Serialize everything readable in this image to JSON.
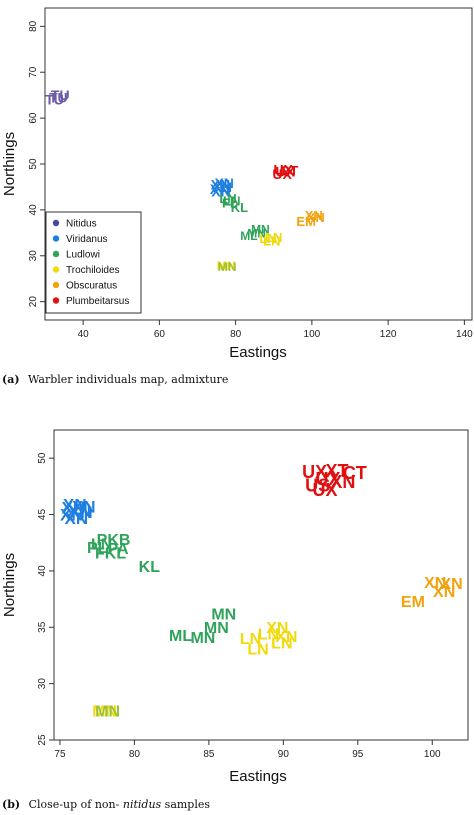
{
  "chart_data": [
    {
      "type": "scatter",
      "title": "",
      "xlabel": "Eastings",
      "ylabel": "Northings",
      "xlim": [
        30,
        142
      ],
      "ylim": [
        16,
        84
      ],
      "x_ticks": [
        40,
        60,
        80,
        100,
        120,
        140
      ],
      "y_ticks": [
        20,
        30,
        40,
        50,
        60,
        70,
        80
      ],
      "grid": false,
      "legend_placement": "bottom-left",
      "caption_prefix": "(a)",
      "caption": "Warbler individuals map, admixture",
      "legend": [
        {
          "name": "Nitidus",
          "color": "#4a4a9c"
        },
        {
          "name": "Viridanus",
          "color": "#1f7fe0"
        },
        {
          "name": "Ludlowi",
          "color": "#2fa35a"
        },
        {
          "name": "Trochiloides",
          "color": "#f2d90a"
        },
        {
          "name": "Obscuratus",
          "color": "#f2a20a"
        },
        {
          "name": "Plumbeitarsus",
          "color": "#e01010"
        }
      ],
      "points": [
        {
          "label": "TU",
          "x": 33.5,
          "y": 64.5,
          "color": "#6a5aa8",
          "size": 14
        },
        {
          "label": "TU",
          "x": 32.5,
          "y": 64.0,
          "color": "#6a5aa8",
          "size": 14
        },
        {
          "label": "TU",
          "x": 34.0,
          "y": 65.0,
          "color": "#6a5aa8",
          "size": 14
        },
        {
          "label": "XN",
          "x": 76.0,
          "y": 45.5,
          "color": "#1f7fe0",
          "size": 14
        },
        {
          "label": "XN",
          "x": 76.5,
          "y": 45.0,
          "color": "#1f7fe0",
          "size": 14
        },
        {
          "label": "XN",
          "x": 75.8,
          "y": 44.5,
          "color": "#1f7fe0",
          "size": 14
        },
        {
          "label": "XN",
          "x": 77.0,
          "y": 45.8,
          "color": "#1f7fe0",
          "size": 14
        },
        {
          "label": "XN",
          "x": 76.2,
          "y": 44.0,
          "color": "#1f7fe0",
          "size": 14
        },
        {
          "label": "LN",
          "x": 78.0,
          "y": 42.5,
          "color": "#2fa35a",
          "size": 13
        },
        {
          "label": "LN",
          "x": 79.0,
          "y": 42.0,
          "color": "#2fa35a",
          "size": 13
        },
        {
          "label": "FL",
          "x": 78.5,
          "y": 41.5,
          "color": "#2fa35a",
          "size": 13
        },
        {
          "label": "KL",
          "x": 81.0,
          "y": 40.5,
          "color": "#2fa35a",
          "size": 13
        },
        {
          "label": "ML",
          "x": 83.5,
          "y": 34.3,
          "color": "#2fa35a",
          "size": 12
        },
        {
          "label": "MN",
          "x": 85.5,
          "y": 34.9,
          "color": "#2fa35a",
          "size": 12
        },
        {
          "label": "MN",
          "x": 86.5,
          "y": 35.8,
          "color": "#2fa35a",
          "size": 12
        },
        {
          "label": "LN",
          "x": 88.5,
          "y": 33.8,
          "color": "#f2d90a",
          "size": 13
        },
        {
          "label": "LN",
          "x": 89.5,
          "y": 33.2,
          "color": "#f2d90a",
          "size": 13
        },
        {
          "label": "LN",
          "x": 90.0,
          "y": 34.0,
          "color": "#f2d90a",
          "size": 13
        },
        {
          "label": "MN",
          "x": 77.5,
          "y": 27.8,
          "color": "#f2d90a",
          "size": 12
        },
        {
          "label": "MN",
          "x": 77.8,
          "y": 27.6,
          "color": "#9ac03a",
          "size": 12
        },
        {
          "label": "UX",
          "x": 92.5,
          "y": 48.8,
          "color": "#e01010",
          "size": 14
        },
        {
          "label": "UX",
          "x": 93.0,
          "y": 48.3,
          "color": "#e01010",
          "size": 14
        },
        {
          "label": "CT",
          "x": 94.0,
          "y": 48.6,
          "color": "#e01010",
          "size": 14
        },
        {
          "label": "UX",
          "x": 92.2,
          "y": 47.8,
          "color": "#e01010",
          "size": 14
        },
        {
          "label": "XN",
          "x": 100.5,
          "y": 38.8,
          "color": "#f2a20a",
          "size": 13
        },
        {
          "label": "XN",
          "x": 101.0,
          "y": 38.4,
          "color": "#f2a20a",
          "size": 13
        },
        {
          "label": "EM",
          "x": 98.5,
          "y": 37.5,
          "color": "#f2a20a",
          "size": 13
        }
      ]
    },
    {
      "type": "scatter",
      "title": "",
      "xlabel": "Eastings",
      "ylabel": "Northings",
      "xlim": [
        74.6,
        102.4
      ],
      "ylim": [
        25,
        52.5
      ],
      "x_ticks": [
        75,
        80,
        85,
        90,
        95,
        100
      ],
      "y_ticks": [
        25,
        30,
        35,
        40,
        45,
        50
      ],
      "grid": false,
      "caption_prefix": "(b)",
      "caption_before": "Close-up of non-",
      "caption_italic": "nitidus",
      "caption_after": " samples",
      "points": [
        {
          "label": "XN",
          "x": 76.0,
          "y": 45.9,
          "color": "#1f7fe0",
          "size": 17
        },
        {
          "label": "XN",
          "x": 76.3,
          "y": 45.4,
          "color": "#1f7fe0",
          "size": 17
        },
        {
          "label": "XN",
          "x": 75.8,
          "y": 45.0,
          "color": "#1f7fe0",
          "size": 17
        },
        {
          "label": "XN",
          "x": 76.6,
          "y": 45.7,
          "color": "#1f7fe0",
          "size": 17
        },
        {
          "label": "XN",
          "x": 76.1,
          "y": 44.7,
          "color": "#1f7fe0",
          "size": 17
        },
        {
          "label": "XN",
          "x": 76.4,
          "y": 45.2,
          "color": "#1f7fe0",
          "size": 17
        },
        {
          "label": "XN",
          "x": 75.9,
          "y": 45.6,
          "color": "#1f7fe0",
          "size": 17
        },
        {
          "label": "PKB",
          "x": 78.6,
          "y": 42.8,
          "color": "#2fa35a",
          "size": 16
        },
        {
          "label": "LN",
          "x": 77.8,
          "y": 42.4,
          "color": "#2fa35a",
          "size": 16
        },
        {
          "label": "PA",
          "x": 78.9,
          "y": 42.0,
          "color": "#2fa35a",
          "size": 16
        },
        {
          "label": "FKL",
          "x": 78.4,
          "y": 41.6,
          "color": "#2fa35a",
          "size": 16
        },
        {
          "label": "PL",
          "x": 77.5,
          "y": 42.1,
          "color": "#2fa35a",
          "size": 16
        },
        {
          "label": "KL",
          "x": 81.0,
          "y": 40.4,
          "color": "#2fa35a",
          "size": 16
        },
        {
          "label": "ML",
          "x": 83.1,
          "y": 34.3,
          "color": "#2fa35a",
          "size": 16
        },
        {
          "label": "MN",
          "x": 84.6,
          "y": 34.1,
          "color": "#2fa35a",
          "size": 16
        },
        {
          "label": "MN",
          "x": 85.5,
          "y": 35.0,
          "color": "#2fa35a",
          "size": 16
        },
        {
          "label": "MN",
          "x": 86.0,
          "y": 36.2,
          "color": "#2fa35a",
          "size": 16
        },
        {
          "label": "LN",
          "x": 87.8,
          "y": 34.0,
          "color": "#f2d90a",
          "size": 16
        },
        {
          "label": "LN",
          "x": 88.3,
          "y": 33.1,
          "color": "#f2d90a",
          "size": 16
        },
        {
          "label": "LN",
          "x": 89.0,
          "y": 34.4,
          "color": "#f2d90a",
          "size": 16
        },
        {
          "label": "XN",
          "x": 89.6,
          "y": 35.0,
          "color": "#f2d90a",
          "size": 16
        },
        {
          "label": "LN",
          "x": 89.9,
          "y": 33.6,
          "color": "#f2d90a",
          "size": 16
        },
        {
          "label": "XN",
          "x": 90.2,
          "y": 34.2,
          "color": "#f2d90a",
          "size": 16
        },
        {
          "label": "MN",
          "x": 78.0,
          "y": 27.6,
          "color": "#f2d90a",
          "size": 16
        },
        {
          "label": "MN",
          "x": 78.2,
          "y": 27.6,
          "color": "#9ac03a",
          "size": 16
        },
        {
          "label": "UX",
          "x": 92.1,
          "y": 48.8,
          "color": "#e01010",
          "size": 18
        },
        {
          "label": "XT",
          "x": 93.6,
          "y": 48.9,
          "color": "#e01010",
          "size": 18
        },
        {
          "label": "CT",
          "x": 94.8,
          "y": 48.7,
          "color": "#e01010",
          "size": 18
        },
        {
          "label": "UX",
          "x": 93.0,
          "y": 48.2,
          "color": "#e01010",
          "size": 18
        },
        {
          "label": "US",
          "x": 92.3,
          "y": 47.6,
          "color": "#e01010",
          "size": 18
        },
        {
          "label": "XN",
          "x": 94.0,
          "y": 47.9,
          "color": "#e01010",
          "size": 18
        },
        {
          "label": "UX",
          "x": 92.8,
          "y": 47.2,
          "color": "#e01010",
          "size": 18
        },
        {
          "label": "XN",
          "x": 100.2,
          "y": 39.0,
          "color": "#f2a20a",
          "size": 16
        },
        {
          "label": "XN",
          "x": 101.3,
          "y": 38.9,
          "color": "#f2a20a",
          "size": 16
        },
        {
          "label": "XN",
          "x": 100.8,
          "y": 38.2,
          "color": "#f2a20a",
          "size": 16
        },
        {
          "label": "EM",
          "x": 98.7,
          "y": 37.3,
          "color": "#f2a20a",
          "size": 16
        }
      ]
    }
  ]
}
